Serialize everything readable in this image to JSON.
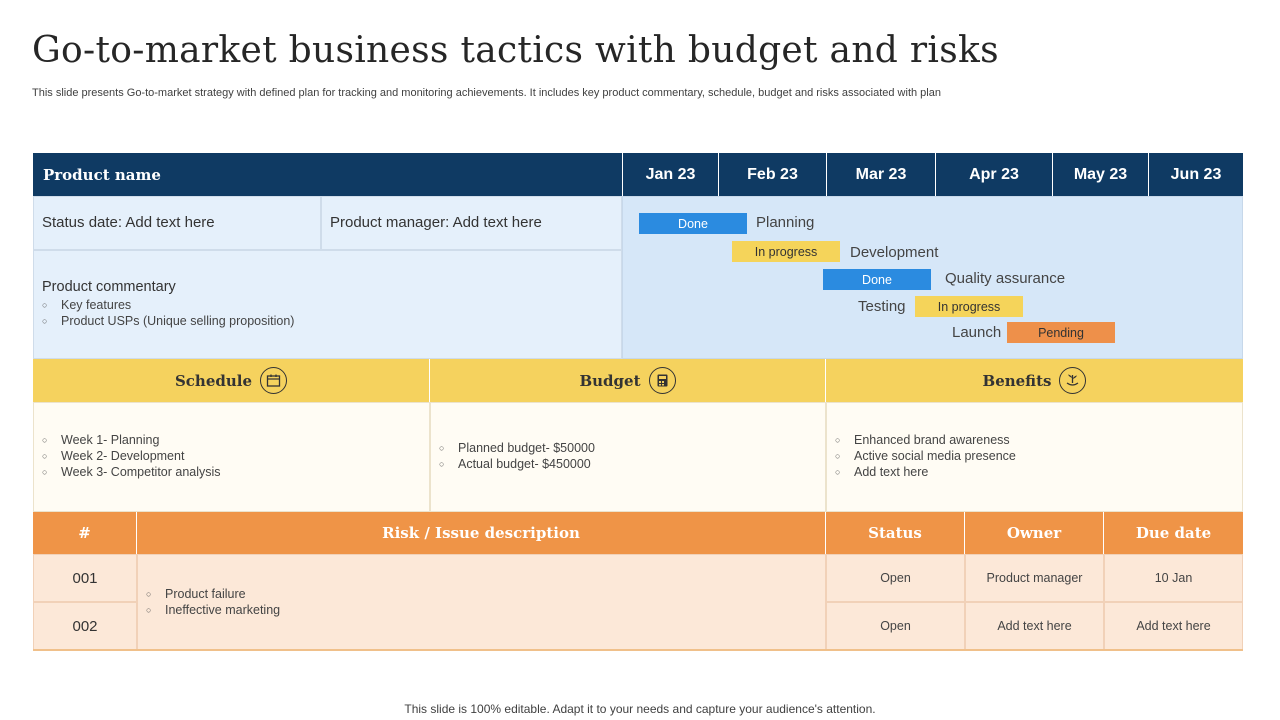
{
  "title": "Go-to-market business tactics with budget and risks",
  "subtitle": "This slide presents Go-to-market strategy with defined plan for tracking and monitoring achievements. It includes key product commentary, schedule, budget and risks associated with plan",
  "header": {
    "product_name": "Product name",
    "months": [
      "Jan 23",
      "Feb 23",
      "Mar 23",
      "Apr 23",
      "May 23",
      "Jun 23"
    ]
  },
  "info": {
    "status_date": "Status date: Add text here",
    "product_manager": "Product manager: Add text here",
    "commentary_title": "Product commentary",
    "commentary_items": [
      "Key features",
      "Product USPs (Unique  selling proposition)"
    ]
  },
  "gantt": [
    {
      "task": "Planning",
      "status": "Done",
      "color": "#2b8be0"
    },
    {
      "task": "Development",
      "status": "In progress",
      "color": "#f5d45a"
    },
    {
      "task": "Quality assurance",
      "status": "Done",
      "color": "#2b8be0"
    },
    {
      "task": "Testing",
      "status": "In progress",
      "color": "#f5d45a"
    },
    {
      "task": "Launch",
      "status": "Pending",
      "color": "#ee904a"
    }
  ],
  "sections": {
    "schedule": {
      "title": "Schedule",
      "icon": "calendar-icon",
      "items": [
        "Week 1- Planning",
        "Week 2- Development",
        "Week 3- Competitor analysis"
      ]
    },
    "budget": {
      "title": "Budget",
      "icon": "calculator-icon",
      "items": [
        "Planned budget-  $50000",
        "Actual budget-  $450000"
      ]
    },
    "benefits": {
      "title": "Benefits",
      "icon": "growth-icon",
      "items": [
        "Enhanced brand awareness",
        "Active social media presence",
        "Add text here"
      ]
    }
  },
  "risk_table": {
    "headers": {
      "num": "#",
      "description": "Risk / Issue description",
      "status": "Status",
      "owner": "Owner",
      "due": "Due date"
    },
    "descriptions": [
      "Product failure",
      "Ineffective  marketing"
    ],
    "rows": [
      {
        "num": "001",
        "status": "Open",
        "owner": "Product manager",
        "due": "10 Jan"
      },
      {
        "num": "002",
        "status": "Open",
        "owner": "Add text here",
        "due": "Add text here"
      }
    ]
  },
  "footer": "This slide is 100% editable. Adapt it to your needs and capture your audience's attention.",
  "colors": {
    "navy": "#0f3a63",
    "yellow": "#f5d25e",
    "orange": "#ef9447",
    "blue": "#2b8be0"
  }
}
